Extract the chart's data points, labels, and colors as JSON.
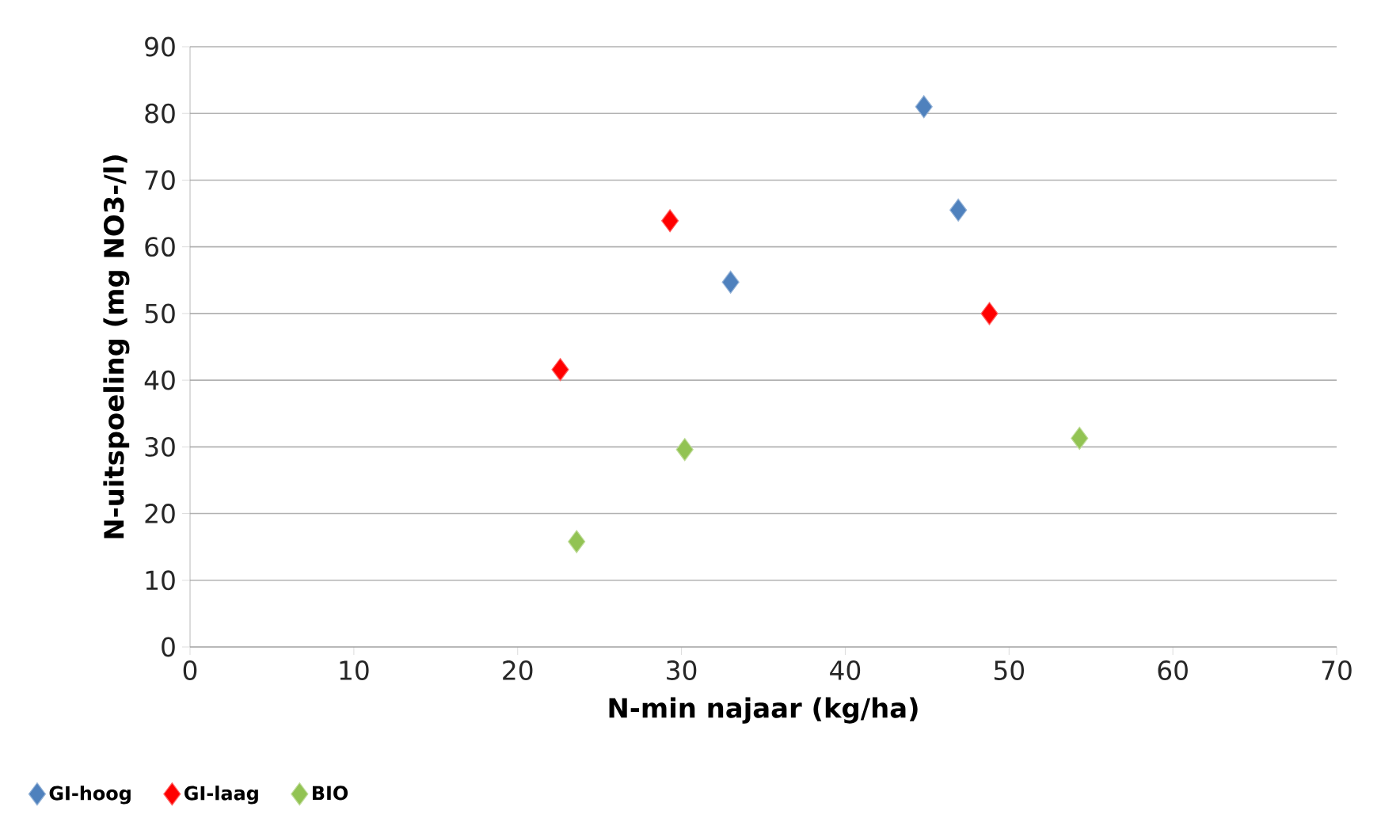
{
  "chart_data": {
    "type": "scatter",
    "xlabel": "N-min najaar (kg/ha)",
    "ylabel": "N-uitspoeling (mg NO3-/l)",
    "series": [
      {
        "name": "GI-hoog",
        "color": "#4f81bd",
        "x": [
          44.8,
          46.9,
          33.0
        ],
        "values": [
          81,
          65.5,
          54.7
        ]
      },
      {
        "name": "GI-laag",
        "color": "#ff0000",
        "x": [
          29.3,
          48.8,
          22.6
        ],
        "values": [
          63.9,
          50.0,
          41.6
        ]
      },
      {
        "name": "BIO",
        "color": "#92c353",
        "x": [
          23.6,
          30.2,
          54.3
        ],
        "values": [
          15.8,
          29.6,
          31.3
        ]
      }
    ],
    "xlim": [
      0,
      70
    ],
    "xticks": [
      0,
      10,
      20,
      30,
      40,
      50,
      60,
      70
    ],
    "ylim": [
      0,
      90
    ],
    "yticks": [
      0,
      10,
      20,
      30,
      40,
      50,
      60,
      70,
      80,
      90
    ],
    "grid": "y",
    "legend": "bottom left",
    "marker": "diamond"
  }
}
